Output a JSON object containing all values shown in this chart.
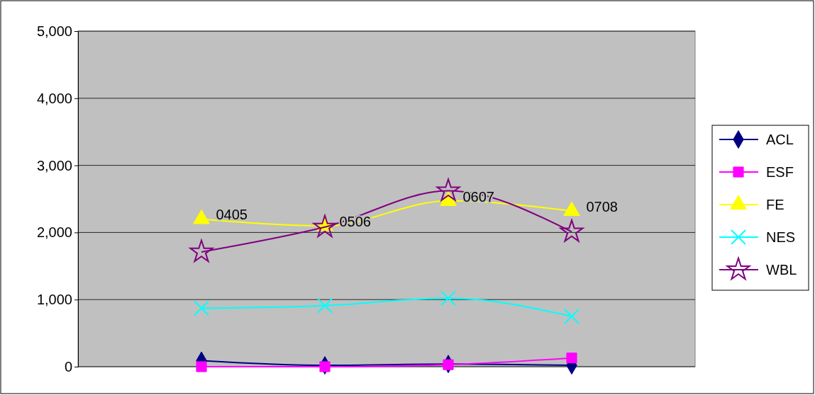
{
  "chart_data": {
    "type": "line",
    "categories": [
      "0405",
      "0506",
      "0607",
      "0708"
    ],
    "ylim": [
      0,
      5000
    ],
    "yticks": [
      {
        "value": 0,
        "label": "0"
      },
      {
        "value": 1000,
        "label": "1,000"
      },
      {
        "value": 2000,
        "label": "2,000"
      },
      {
        "value": 3000,
        "label": "3,000"
      },
      {
        "value": 4000,
        "label": "4,000"
      },
      {
        "value": 5000,
        "label": "5,000"
      }
    ],
    "grid": "y",
    "legend": "right",
    "line_style": "solid",
    "series": [
      {
        "name": "ACL",
        "color": "#000080",
        "marker": "diamond",
        "values": [
          90,
          20,
          40,
          20
        ]
      },
      {
        "name": "ESF",
        "color": "#ff00ff",
        "marker": "square",
        "values": [
          0,
          0,
          30,
          130
        ]
      },
      {
        "name": "FE",
        "color": "#ffff00",
        "marker": "triangle",
        "values": [
          2200,
          2100,
          2470,
          2320
        ]
      },
      {
        "name": "NES",
        "color": "#00ffff",
        "marker": "cross",
        "values": [
          870,
          910,
          1020,
          750
        ]
      },
      {
        "name": "WBL",
        "color": "#800080",
        "marker": "star",
        "values": [
          1710,
          2080,
          2620,
          2010
        ]
      }
    ]
  }
}
